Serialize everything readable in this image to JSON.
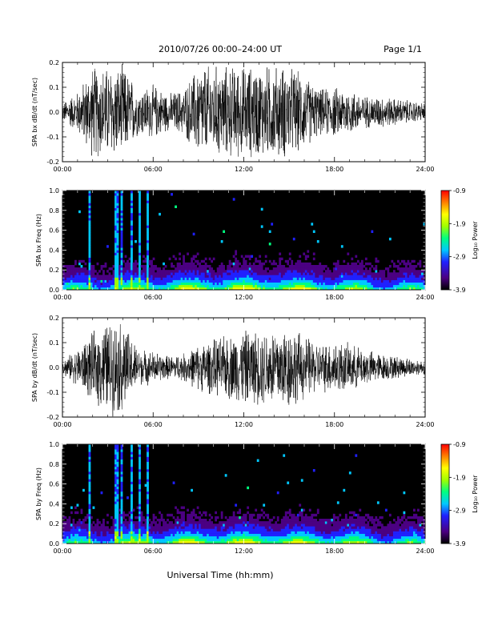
{
  "header": {
    "title": "2010/07/26  00:00–24:00 UT",
    "page": "Page 1/1"
  },
  "xlabel": "Universal Time (hh:mm)",
  "colors": {
    "waveform": "#000000",
    "background": "#ffffff",
    "spectrogram_bg": "#000000",
    "colormap": [
      "#000000",
      "#4b0082",
      "#2020ff",
      "#00c8ff",
      "#00ff80",
      "#a0ff00",
      "#ffff00",
      "#ff8000",
      "#ff0000"
    ]
  },
  "chart_data": [
    {
      "type": "line",
      "ylabel": "SPA bx dB/dt (nT/sec)",
      "xticks": [
        "00:00",
        "06:00",
        "12:00",
        "18:00",
        "24:00"
      ],
      "yticks": [
        "0.2",
        "0.1",
        "0.0",
        "-0.1",
        "-0.2"
      ],
      "xlim": [
        0,
        24
      ],
      "ylim": [
        -0.2,
        0.2
      ],
      "series": [
        {
          "x": [
            0,
            1,
            2,
            3,
            4,
            5,
            6,
            7,
            8,
            9,
            10,
            11,
            12,
            13,
            14,
            15,
            16,
            17,
            18,
            19,
            20,
            21,
            22,
            23,
            24
          ],
          "envelope": [
            0.04,
            0.09,
            0.2,
            0.2,
            0.2,
            0.1,
            0.12,
            0.08,
            0.1,
            0.2,
            0.2,
            0.2,
            0.2,
            0.2,
            0.2,
            0.2,
            0.16,
            0.1,
            0.11,
            0.1,
            0.07,
            0.07,
            0.06,
            0.05,
            0.04
          ]
        }
      ]
    },
    {
      "type": "heatmap",
      "ylabel": "SPA bx Freq (Hz)",
      "xticks": [
        "00:00",
        "06:00",
        "12:00",
        "18:00",
        "24:00"
      ],
      "yticks": [
        "1.0",
        "0.8",
        "0.6",
        "0.4",
        "0.2",
        "0.0"
      ],
      "xlim": [
        0,
        24
      ],
      "ylim": [
        0,
        1.0
      ],
      "colorbar": {
        "label": "Log₁₀ Power",
        "ticks": [
          "-0.9",
          "-1.9",
          "-2.9",
          "-3.9"
        ],
        "range": [
          -3.9,
          -0.9
        ]
      },
      "bursts_hours": [
        1.8,
        3.6,
        3.9,
        4.6,
        5.1,
        5.6
      ]
    },
    {
      "type": "line",
      "ylabel": "SPA by dB/dt (nT/sec)",
      "xticks": [
        "00:00",
        "06:00",
        "12:00",
        "18:00",
        "24:00"
      ],
      "yticks": [
        "0.2",
        "0.1",
        "0.0",
        "-0.1",
        "-0.2"
      ],
      "xlim": [
        0,
        24
      ],
      "ylim": [
        -0.2,
        0.2
      ],
      "series": [
        {
          "x": [
            0,
            1,
            2,
            3,
            4,
            5,
            6,
            7,
            8,
            9,
            10,
            11,
            12,
            13,
            14,
            15,
            16,
            17,
            18,
            19,
            20,
            21,
            22,
            23,
            24
          ],
          "envelope": [
            0.03,
            0.08,
            0.15,
            0.2,
            0.2,
            0.08,
            0.07,
            0.05,
            0.06,
            0.1,
            0.12,
            0.14,
            0.16,
            0.16,
            0.18,
            0.18,
            0.14,
            0.1,
            0.12,
            0.1,
            0.08,
            0.06,
            0.05,
            0.04,
            0.03
          ]
        }
      ]
    },
    {
      "type": "heatmap",
      "ylabel": "SPA by Freq (Hz)",
      "xticks": [
        "00:00",
        "06:00",
        "12:00",
        "18:00",
        "24:00"
      ],
      "yticks": [
        "1.0",
        "0.8",
        "0.6",
        "0.4",
        "0.2",
        "0.0"
      ],
      "xlim": [
        0,
        24
      ],
      "ylim": [
        0,
        1.0
      ],
      "colorbar": {
        "label": "Log₁₀ Power",
        "ticks": [
          "-0.9",
          "-1.9",
          "-2.9",
          "-3.9"
        ],
        "range": [
          -3.9,
          -0.9
        ]
      },
      "bursts_hours": [
        1.8,
        3.6,
        3.9,
        4.6,
        5.1,
        5.6
      ]
    }
  ]
}
